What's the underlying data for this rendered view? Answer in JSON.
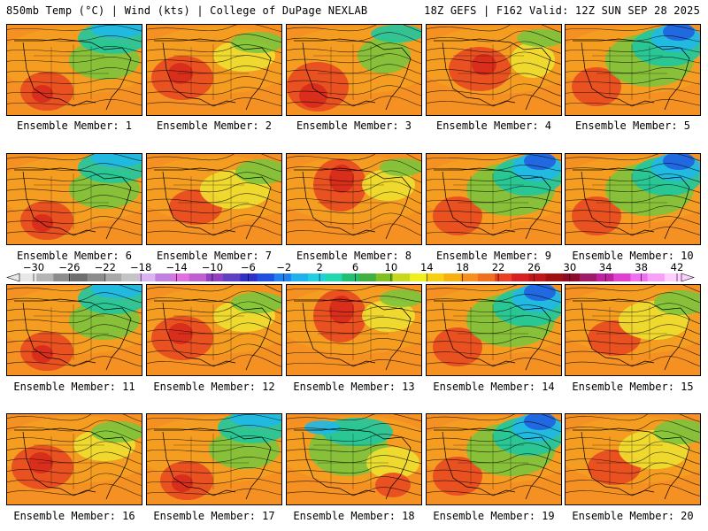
{
  "header": {
    "left": "850mb Temp (°C) | Wind (kts) | College of DuPage NEXLAB",
    "right": "18Z GEFS | F162 Valid: 12Z SUN SEP 28 2025"
  },
  "panels": [
    {
      "label": "Ensemble Member: 1",
      "variant": "cool-ne"
    },
    {
      "label": "Ensemble Member: 2",
      "variant": "warm-west"
    },
    {
      "label": "Ensemble Member: 3",
      "variant": "warm-sw"
    },
    {
      "label": "Ensemble Member: 4",
      "variant": "warm-central"
    },
    {
      "label": "Ensemble Member: 5",
      "variant": "cold-ne"
    },
    {
      "label": "Ensemble Member: 6",
      "variant": "cool-ne"
    },
    {
      "label": "Ensemble Member: 7",
      "variant": "mild"
    },
    {
      "label": "Ensemble Member: 8",
      "variant": "warm-plains"
    },
    {
      "label": "Ensemble Member: 9",
      "variant": "cold-ne"
    },
    {
      "label": "Ensemble Member: 10",
      "variant": "cold-ne"
    },
    {
      "label": "Ensemble Member: 11",
      "variant": "cool-ne"
    },
    {
      "label": "Ensemble Member: 12",
      "variant": "warm-west"
    },
    {
      "label": "Ensemble Member: 13",
      "variant": "warm-plains"
    },
    {
      "label": "Ensemble Member: 14",
      "variant": "cold-ne"
    },
    {
      "label": "Ensemble Member: 15",
      "variant": "mild"
    },
    {
      "label": "Ensemble Member: 16",
      "variant": "warm-west"
    },
    {
      "label": "Ensemble Member: 17",
      "variant": "cool-ne"
    },
    {
      "label": "Ensemble Member: 18",
      "variant": "cool-central"
    },
    {
      "label": "Ensemble Member: 19",
      "variant": "cold-ne"
    },
    {
      "label": "Ensemble Member: 20",
      "variant": "mild"
    }
  ],
  "colorbar": {
    "ticks": [
      "-30",
      "-26",
      "-22",
      "-18",
      "-14",
      "-10",
      "-6",
      "-2",
      "2",
      "6",
      "10",
      "14",
      "18",
      "22",
      "26",
      "30",
      "34",
      "38",
      "42"
    ],
    "colors": [
      "#e8e8e8",
      "#b4b4b4",
      "#8c8c8c",
      "#6e6e6e",
      "#8c8c8c",
      "#a8a8a8",
      "#c4c4c4",
      "#d8b4f0",
      "#c080e0",
      "#e070e0",
      "#c060d0",
      "#9040c0",
      "#6040c0",
      "#3030c8",
      "#2050e0",
      "#2080f0",
      "#20b0f0",
      "#20d0e0",
      "#20d8b0",
      "#20c070",
      "#40b040",
      "#80c020",
      "#c8d820",
      "#f0f020",
      "#f8d010",
      "#f8b010",
      "#f89020",
      "#f07020",
      "#e84020",
      "#d82020",
      "#c01818",
      "#a01010",
      "#900828",
      "#a01868",
      "#c020a0",
      "#e040d0",
      "#f070f0",
      "#f8a0f8",
      "#ffd0ff"
    ]
  },
  "colors": {
    "warm": "#f5a020",
    "orange": "#f59022",
    "hot": "#e84a20",
    "red": "#d82a1c",
    "yellow": "#f0e030",
    "green": "#7cc43c",
    "teal": "#20c8a0",
    "cyan": "#20b8e8",
    "blue": "#2060e0"
  }
}
